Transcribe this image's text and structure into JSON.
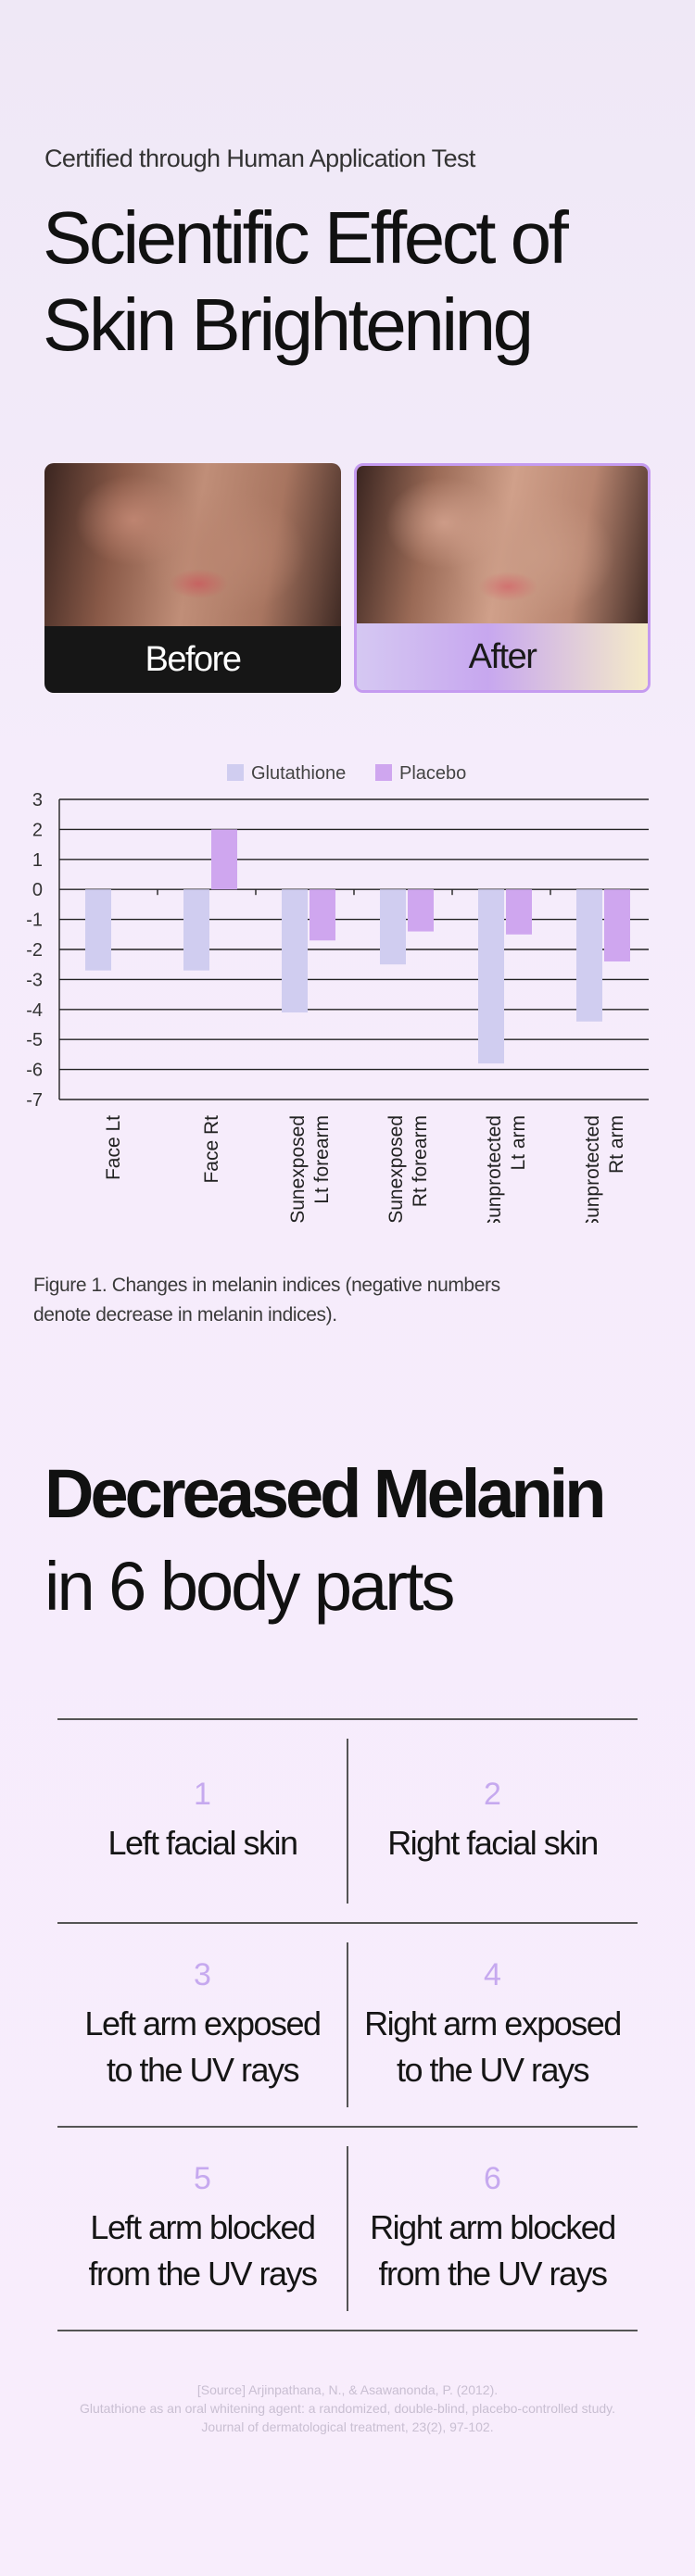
{
  "header": {
    "subtitle": "Certified through Human Application Test",
    "title": "Scientific Effect of Skin Brightening"
  },
  "photos": {
    "before_label": "Before",
    "after_label": "After"
  },
  "colors": {
    "glutathione": "#d0cdf0",
    "placebo": "#cfa6ef",
    "accent": "#c59bf0"
  },
  "chart_data": {
    "type": "bar",
    "title": "",
    "xlabel": "",
    "ylabel": "",
    "ylim": [
      -7,
      3
    ],
    "yticks": [
      3,
      2,
      1,
      0,
      -1,
      -2,
      -3,
      -4,
      -5,
      -6,
      -7
    ],
    "grid": true,
    "legend_position": "top-center",
    "categories": [
      [
        "Face Lt"
      ],
      [
        "Face Rt"
      ],
      [
        "Sunexposed",
        "Lt forearm"
      ],
      [
        "Sunexposed",
        "Rt forearm"
      ],
      [
        "Sunprotected",
        "Lt arm"
      ],
      [
        "Sunprotected",
        "Rt arm"
      ]
    ],
    "series": [
      {
        "name": "Glutathione",
        "values": [
          -2.7,
          -2.7,
          -4.1,
          -2.5,
          -5.8,
          -4.4
        ]
      },
      {
        "name": "Placebo",
        "values": [
          0,
          2.0,
          -1.7,
          -1.4,
          -1.5,
          -2.4
        ]
      }
    ]
  },
  "caption": "Figure 1. Changes in melanin indices (negative numbers denote decrease in melanin indices).",
  "section2": {
    "title_bold": "Decreased Melanin",
    "title_normal": "in 6 body parts"
  },
  "body_parts": [
    {
      "number": "1",
      "label": "Left facial skin"
    },
    {
      "number": "2",
      "label": "Right facial skin"
    },
    {
      "number": "3",
      "label": "Left arm exposed\nto the UV rays"
    },
    {
      "number": "4",
      "label": "Right arm exposed\nto the UV rays"
    },
    {
      "number": "5",
      "label": "Left arm blocked\nfrom the UV rays"
    },
    {
      "number": "6",
      "label": "Right arm blocked\nfrom the UV rays"
    }
  ],
  "source": {
    "line1": "[Source] Arjinpathana, N., & Asawanonda, P. (2012).",
    "line2": "Glutathione as an oral whitening agent: a randomized, double-blind, placebo-controlled study.",
    "line3": "Journal of dermatological treatment, 23(2), 97-102."
  }
}
